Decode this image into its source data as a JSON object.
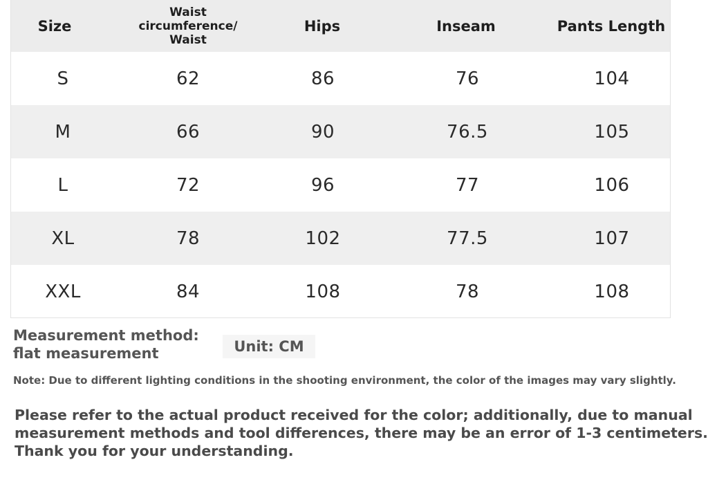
{
  "table": {
    "headers": [
      "Size",
      "Waist circumference/ Waist",
      "Hips",
      "Inseam",
      "Pants Length"
    ],
    "rows": [
      [
        "S",
        "62",
        "86",
        "76",
        "104"
      ],
      [
        "M",
        "66",
        "90",
        "76.5",
        "105"
      ],
      [
        "L",
        "72",
        "96",
        "77",
        "106"
      ],
      [
        "XL",
        "78",
        "102",
        "77.5",
        "107"
      ],
      [
        "XXL",
        "84",
        "108",
        "78",
        "108"
      ]
    ]
  },
  "measurement": {
    "line1": "Measurement method:",
    "line2": "flat measurement"
  },
  "unit": "Unit: CM",
  "note": "Note: Due to different lighting conditions in the shooting environment, the color of the images may vary slightly.",
  "notice": {
    "line1": "Please refer to the actual product received for the color; additionally, due to manual",
    "line2": "measurement methods and tool differences, there may be an error of 1-3 centimeters.",
    "line3": "Thank you for your understanding."
  },
  "colors": {
    "header_bg": "#ececec",
    "stripe_bg": "#efefef",
    "text": "#2a2a2a",
    "muted_text": "#555555"
  }
}
